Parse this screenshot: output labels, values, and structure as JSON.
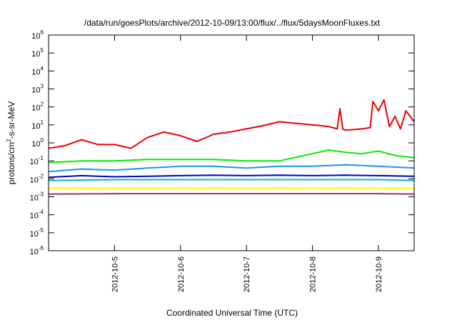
{
  "chart_data": {
    "type": "line",
    "title": "/data/run/goesPlots/archive/2012-10-09/13:00/flux/../flux/5daysMoonFluxes.txt",
    "xlabel": "Coordinated Universal Time (UTC)",
    "ylabel_parts": {
      "pre": "protons/cm",
      "sup": "2",
      "post": "-s-sr-MeV"
    },
    "y_scale": "log",
    "ylim": [
      1e-06,
      1000000.0
    ],
    "y_ticks": [
      {
        "base": "10",
        "exp": "-6",
        "value": 1e-06
      },
      {
        "base": "10",
        "exp": "-5",
        "value": 1e-05
      },
      {
        "base": "10",
        "exp": "-4",
        "value": 0.0001
      },
      {
        "base": "10",
        "exp": "-3",
        "value": 0.001
      },
      {
        "base": "10",
        "exp": "-2",
        "value": 0.01
      },
      {
        "base": "10",
        "exp": "-1",
        "value": 0.1
      },
      {
        "base": "10",
        "exp": "0",
        "value": 1
      },
      {
        "base": "10",
        "exp": "1",
        "value": 10.0
      },
      {
        "base": "10",
        "exp": "2",
        "value": 100.0
      },
      {
        "base": "10",
        "exp": "3",
        "value": 1000.0
      },
      {
        "base": "10",
        "exp": "4",
        "value": 10000.0
      },
      {
        "base": "10",
        "exp": "5",
        "value": 100000.0
      },
      {
        "base": "10",
        "exp": "6",
        "value": 1000000.0
      }
    ],
    "xlim": [
      "2012-10-04 00:00",
      "2012-10-09 13:00"
    ],
    "x_ticks": [
      "2012-10-5",
      "2012-10-6",
      "2012-10-7",
      "2012-10-8",
      "2012-10-9"
    ],
    "grid": false,
    "legend": "none",
    "series": [
      {
        "color": "#ee0000",
        "x": [
          "2012-10-04 00:00",
          "2012-10-04 06:00",
          "2012-10-04 12:00",
          "2012-10-04 18:00",
          "2012-10-05 00:00",
          "2012-10-05 06:00",
          "2012-10-05 12:00",
          "2012-10-05 18:00",
          "2012-10-06 00:00",
          "2012-10-06 06:00",
          "2012-10-06 12:00",
          "2012-10-06 18:00",
          "2012-10-07 00:00",
          "2012-10-07 06:00",
          "2012-10-07 12:00",
          "2012-10-07 18:00",
          "2012-10-08 00:00",
          "2012-10-08 06:00",
          "2012-10-08 09:00",
          "2012-10-08 10:00",
          "2012-10-08 11:00",
          "2012-10-08 12:00",
          "2012-10-08 18:00",
          "2012-10-08 21:00",
          "2012-10-08 22:00",
          "2012-10-09 00:00",
          "2012-10-09 02:00",
          "2012-10-09 04:00",
          "2012-10-09 06:00",
          "2012-10-09 08:00",
          "2012-10-09 10:00",
          "2012-10-09 13:00"
        ],
        "values": [
          0.5,
          0.7,
          1.5,
          0.8,
          0.8,
          0.5,
          2.0,
          4.0,
          2.5,
          1.2,
          3.0,
          4.0,
          6.0,
          9.0,
          15.0,
          12.0,
          10.0,
          8.0,
          6.0,
          80.0,
          6.0,
          5.0,
          6.0,
          7.0,
          200.0,
          60.0,
          250.0,
          8.0,
          30.0,
          6.0,
          60.0,
          15.0
        ]
      },
      {
        "color": "#00ee00",
        "x": [
          "2012-10-04 00:00",
          "2012-10-04 12:00",
          "2012-10-05 00:00",
          "2012-10-05 12:00",
          "2012-10-06 00:00",
          "2012-10-06 12:00",
          "2012-10-07 00:00",
          "2012-10-07 12:00",
          "2012-10-08 00:00",
          "2012-10-08 06:00",
          "2012-10-08 12:00",
          "2012-10-08 18:00",
          "2012-10-09 00:00",
          "2012-10-09 06:00",
          "2012-10-09 13:00"
        ],
        "values": [
          0.08,
          0.1,
          0.1,
          0.12,
          0.12,
          0.12,
          0.1,
          0.1,
          0.25,
          0.4,
          0.3,
          0.25,
          0.35,
          0.2,
          0.15
        ]
      },
      {
        "color": "#1e90ff",
        "x": [
          "2012-10-04 00:00",
          "2012-10-04 12:00",
          "2012-10-05 00:00",
          "2012-10-05 12:00",
          "2012-10-06 00:00",
          "2012-10-06 12:00",
          "2012-10-07 00:00",
          "2012-10-07 12:00",
          "2012-10-08 00:00",
          "2012-10-08 12:00",
          "2012-10-09 00:00",
          "2012-10-09 13:00"
        ],
        "values": [
          0.025,
          0.035,
          0.03,
          0.04,
          0.05,
          0.05,
          0.04,
          0.05,
          0.05,
          0.06,
          0.05,
          0.04
        ]
      },
      {
        "color": "#0000cc",
        "x": [
          "2012-10-04 00:00",
          "2012-10-04 12:00",
          "2012-10-05 00:00",
          "2012-10-05 12:00",
          "2012-10-06 00:00",
          "2012-10-06 12:00",
          "2012-10-07 00:00",
          "2012-10-07 12:00",
          "2012-10-08 00:00",
          "2012-10-08 12:00",
          "2012-10-09 00:00",
          "2012-10-09 13:00"
        ],
        "values": [
          0.012,
          0.015,
          0.013,
          0.014,
          0.015,
          0.016,
          0.015,
          0.016,
          0.015,
          0.016,
          0.015,
          0.014
        ]
      },
      {
        "color": "#00bbbb",
        "x": [
          "2012-10-04 00:00",
          "2012-10-05 00:00",
          "2012-10-06 00:00",
          "2012-10-07 00:00",
          "2012-10-08 00:00",
          "2012-10-09 00:00",
          "2012-10-09 13:00"
        ],
        "values": [
          0.008,
          0.009,
          0.009,
          0.009,
          0.009,
          0.009,
          0.008
        ]
      },
      {
        "color": "#ffff00",
        "x": [
          "2012-10-04 00:00",
          "2012-10-05 00:00",
          "2012-10-06 00:00",
          "2012-10-07 00:00",
          "2012-10-08 00:00",
          "2012-10-09 00:00",
          "2012-10-09 13:00"
        ],
        "values": [
          0.003,
          0.003,
          0.003,
          0.003,
          0.003,
          0.003,
          0.003
        ]
      },
      {
        "color": "#993366",
        "x": [
          "2012-10-04 00:00",
          "2012-10-05 00:00",
          "2012-10-06 00:00",
          "2012-10-07 00:00",
          "2012-10-08 00:00",
          "2012-10-09 00:00",
          "2012-10-09 13:00"
        ],
        "values": [
          0.0014,
          0.0015,
          0.0015,
          0.0015,
          0.0015,
          0.0015,
          0.0014
        ]
      }
    ]
  }
}
